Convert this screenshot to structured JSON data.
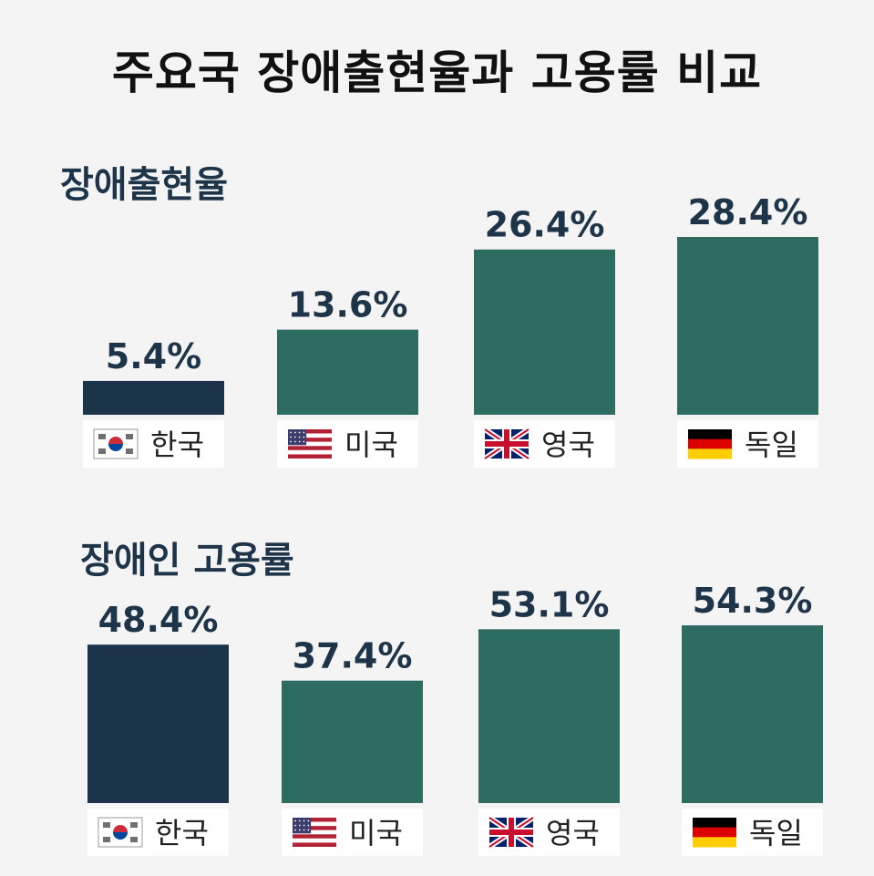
{
  "title": "주요국 장애출현율과 고용률 비교",
  "colors": {
    "highlight": "#1b3449",
    "default": "#2e6b60",
    "label_text": "#1e3448",
    "label_bg": "#ffffff"
  },
  "chart_data": [
    {
      "type": "bar",
      "title": "장애출현율",
      "categories": [
        "한국",
        "미국",
        "영국",
        "독일"
      ],
      "flags": [
        "korea-flag-icon",
        "usa-flag-icon",
        "uk-flag-icon",
        "germany-flag-icon"
      ],
      "values": [
        5.4,
        13.6,
        26.4,
        28.4
      ],
      "value_labels": [
        "5.4%",
        "13.6%",
        "26.4%",
        "28.4%"
      ],
      "unit": "%",
      "highlight_index": 0,
      "xlabel": "",
      "ylabel": "",
      "grid": false,
      "legend": "none"
    },
    {
      "type": "bar",
      "title": "장애인 고용률",
      "categories": [
        "한국",
        "미국",
        "영국",
        "독일"
      ],
      "flags": [
        "korea-flag-icon",
        "usa-flag-icon",
        "uk-flag-icon",
        "germany-flag-icon"
      ],
      "values": [
        48.4,
        37.4,
        53.1,
        54.3
      ],
      "value_labels": [
        "48.4%",
        "37.4%",
        "53.1%",
        "54.3%"
      ],
      "unit": "%",
      "highlight_index": 0,
      "xlabel": "",
      "ylabel": "",
      "grid": false,
      "legend": "none"
    }
  ]
}
